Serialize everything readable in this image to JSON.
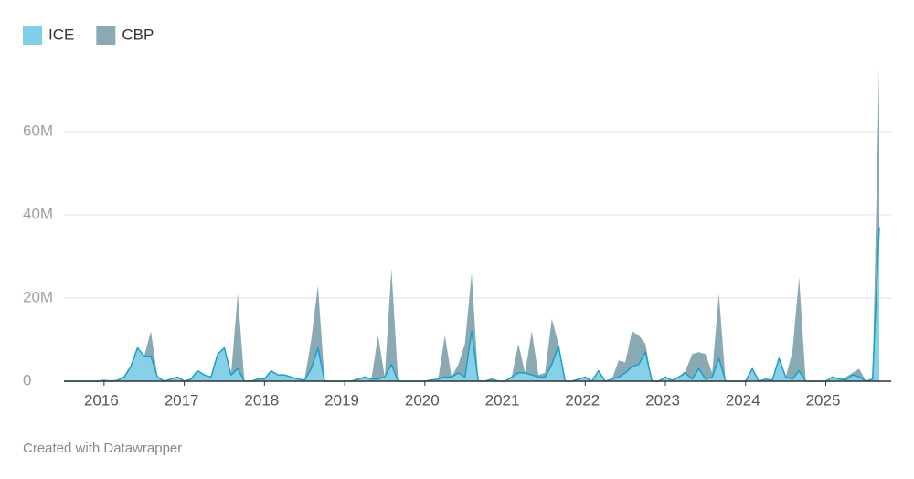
{
  "chart_data": {
    "type": "stacked-area",
    "categories": [
      null,
      null,
      null,
      null,
      null,
      null,
      "2016",
      null,
      null,
      null,
      null,
      null,
      null,
      null,
      null,
      null,
      null,
      null,
      "2017",
      null,
      null,
      null,
      null,
      null,
      null,
      null,
      null,
      null,
      null,
      null,
      "2018",
      null,
      null,
      null,
      null,
      null,
      null,
      null,
      null,
      null,
      null,
      null,
      "2019",
      null,
      null,
      null,
      null,
      null,
      null,
      null,
      null,
      null,
      null,
      null,
      "2020",
      null,
      null,
      null,
      null,
      null,
      null,
      null,
      null,
      null,
      null,
      null,
      "2021",
      null,
      null,
      null,
      null,
      null,
      null,
      null,
      null,
      null,
      null,
      null,
      "2022",
      null,
      null,
      null,
      null,
      null,
      null,
      null,
      null,
      null,
      null,
      null,
      "2023",
      null,
      null,
      null,
      null,
      null,
      null,
      null,
      null,
      null,
      null,
      null,
      "2024",
      null,
      null,
      null,
      null,
      null,
      null,
      null,
      null,
      null,
      null,
      null,
      "2025",
      null,
      null,
      null,
      null,
      null,
      null,
      null,
      null
    ],
    "series": [
      {
        "name": "ICE",
        "color": "#7fcfe6",
        "line_color": "#1a9fc6",
        "values": [
          0,
          0,
          0,
          0,
          0,
          0,
          0.2,
          0,
          0.2,
          1,
          3.5,
          8,
          6,
          6,
          1,
          0,
          0.5,
          1,
          0,
          0.5,
          2.5,
          1.5,
          1,
          6.5,
          8,
          1.5,
          3,
          0,
          0,
          0.5,
          0.5,
          2.5,
          1.5,
          1.5,
          1,
          0.5,
          0.3,
          3,
          8,
          0,
          0,
          0,
          0,
          0,
          0.5,
          1,
          0.5,
          0.5,
          1,
          4,
          0,
          0,
          0,
          0,
          0,
          0.3,
          0.5,
          1,
          1,
          2,
          1,
          12,
          0,
          0,
          0.5,
          0,
          0,
          1,
          2,
          2,
          1.5,
          1,
          1,
          4,
          8.5,
          0,
          0,
          0.5,
          1,
          0,
          2.5,
          0,
          0.5,
          1,
          2,
          3.5,
          4,
          7,
          0,
          0,
          1,
          0.2,
          1,
          2,
          0.5,
          3,
          0.5,
          1,
          5.5,
          0,
          0,
          0,
          0,
          3,
          0,
          0.5,
          0.2,
          5.5,
          1,
          0.5,
          2.5,
          0,
          0,
          0,
          0,
          1,
          0.5,
          0.3,
          1.5,
          1,
          0,
          0.5,
          37
        ]
      },
      {
        "name": "CBP",
        "color": "#89a9b3",
        "values": [
          0,
          0,
          0,
          0,
          0,
          0,
          0,
          0,
          0,
          0,
          0,
          0,
          0,
          6,
          0,
          0,
          0,
          0,
          0,
          0,
          0,
          0,
          0,
          0,
          0,
          0,
          18,
          0,
          0,
          0,
          0,
          0,
          0,
          0,
          0,
          0,
          0,
          7,
          15,
          0,
          0,
          0,
          0,
          0,
          0,
          0,
          0,
          10.5,
          0,
          23,
          0,
          0,
          0,
          0,
          0,
          0,
          0,
          10,
          0,
          2,
          8,
          14,
          0,
          0,
          0,
          0,
          0,
          0,
          7,
          0,
          10.5,
          0.5,
          1,
          11,
          0.5,
          0,
          0,
          0,
          0,
          0,
          0,
          0,
          0,
          4,
          2.5,
          8.5,
          7,
          2,
          0,
          0,
          0,
          0,
          0,
          0.5,
          6,
          4,
          6,
          1,
          15.5,
          0,
          0,
          0,
          0,
          0,
          0,
          0,
          0,
          0.5,
          0,
          6.5,
          22.5,
          0,
          0,
          0,
          0,
          0,
          0,
          0.7,
          0.5,
          2,
          0,
          0,
          38
        ]
      }
    ],
    "ylim": [
      0,
      76
    ],
    "yticks": [
      0,
      {
        "value": 20,
        "label": "20M"
      },
      {
        "value": 40,
        "label": "40M"
      },
      {
        "value": 60,
        "label": "60M"
      }
    ],
    "grid": true,
    "legend": "top-left"
  },
  "credit": "Created with Datawrapper"
}
